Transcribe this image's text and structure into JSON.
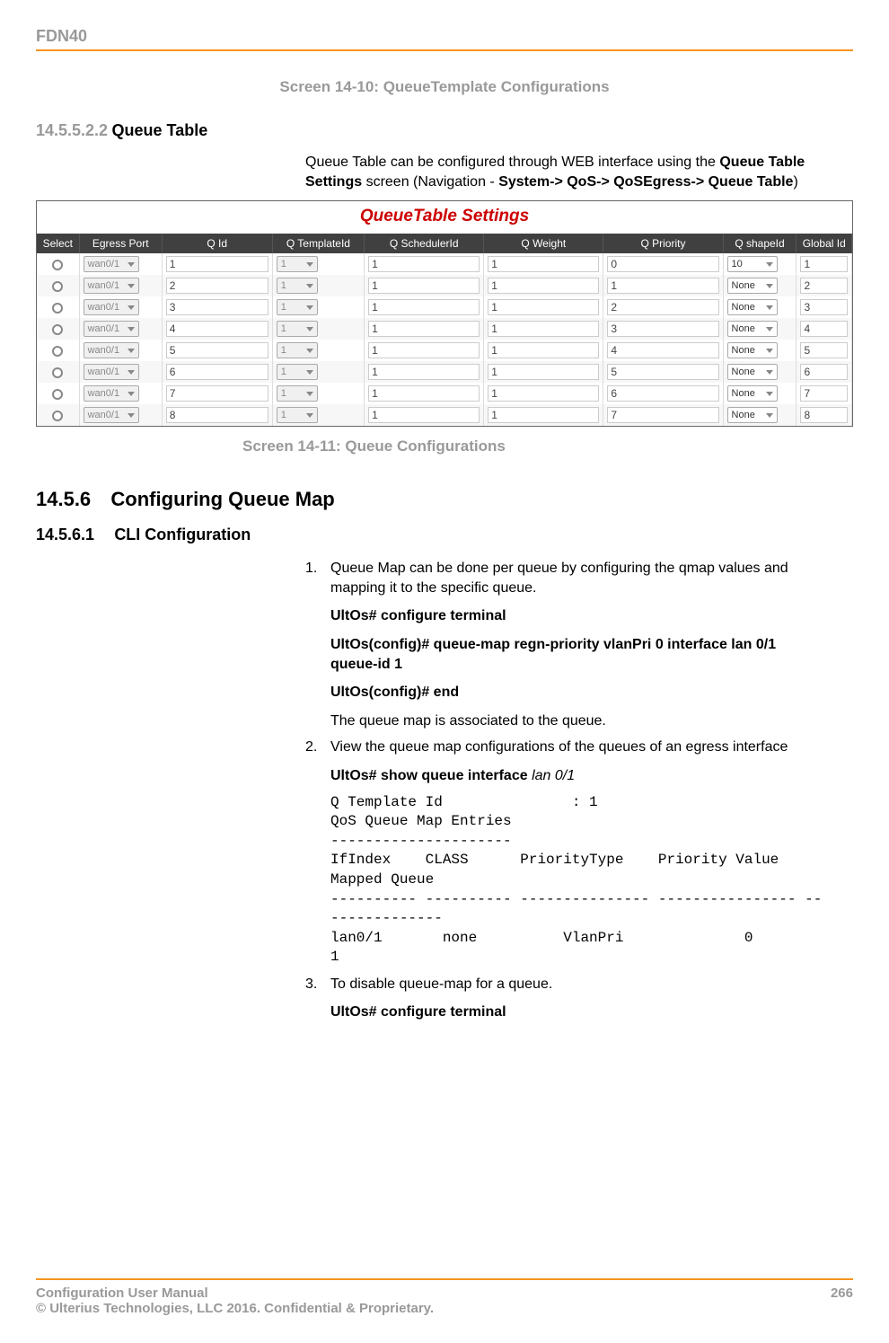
{
  "header": {
    "code": "FDN40"
  },
  "captions": {
    "c1": "Screen 14-10: QueueTemplate Configurations",
    "c2": "Screen 14-11: Queue Configurations"
  },
  "section1": {
    "num": "14.5.5.2.2",
    "title": "Queue Table",
    "para_pre": "Queue Table can be configured through WEB interface using the ",
    "para_bold1": "Queue Table Settings",
    "para_mid": " screen (Navigation - ",
    "para_bold2": "System-> QoS-> QoSEgress-> Queue Table",
    "para_post": ")"
  },
  "ui": {
    "title": "QueueTable Settings",
    "columns": [
      "Select",
      "Egress Port",
      "Q Id",
      "Q TemplateId",
      "Q SchedulerId",
      "Q Weight",
      "Q Priority",
      "Q shapeId",
      "Global Id"
    ],
    "rows": [
      {
        "port": "wan0/1",
        "qid": "1",
        "tmpl": "1",
        "sched": "1",
        "weight": "1",
        "prio": "0",
        "shape": "10",
        "gid": "1"
      },
      {
        "port": "wan0/1",
        "qid": "2",
        "tmpl": "1",
        "sched": "1",
        "weight": "1",
        "prio": "1",
        "shape": "None",
        "gid": "2"
      },
      {
        "port": "wan0/1",
        "qid": "3",
        "tmpl": "1",
        "sched": "1",
        "weight": "1",
        "prio": "2",
        "shape": "None",
        "gid": "3"
      },
      {
        "port": "wan0/1",
        "qid": "4",
        "tmpl": "1",
        "sched": "1",
        "weight": "1",
        "prio": "3",
        "shape": "None",
        "gid": "4"
      },
      {
        "port": "wan0/1",
        "qid": "5",
        "tmpl": "1",
        "sched": "1",
        "weight": "1",
        "prio": "4",
        "shape": "None",
        "gid": "5"
      },
      {
        "port": "wan0/1",
        "qid": "6",
        "tmpl": "1",
        "sched": "1",
        "weight": "1",
        "prio": "5",
        "shape": "None",
        "gid": "6"
      },
      {
        "port": "wan0/1",
        "qid": "7",
        "tmpl": "1",
        "sched": "1",
        "weight": "1",
        "prio": "6",
        "shape": "None",
        "gid": "7"
      },
      {
        "port": "wan0/1",
        "qid": "8",
        "tmpl": "1",
        "sched": "1",
        "weight": "1",
        "prio": "7",
        "shape": "None",
        "gid": "8"
      }
    ]
  },
  "h2": {
    "num": "14.5.6",
    "title": "Configuring Queue Map"
  },
  "h3": {
    "num": "14.5.6.1",
    "title": "CLI Configuration"
  },
  "proc": {
    "n1": "1.",
    "t1": "Queue Map can be done per queue by configuring the qmap values and mapping it to the specific queue.",
    "cmd1a": "UltOs# configure terminal",
    "cmd1b": "UltOs(config)# queue-map regn-priority vlanPri 0 interface lan 0/1 queue-id 1",
    "cmd1c": "UltOs(config)# end",
    "t1b": "The queue map is associated to the queue.",
    "n2": "2.",
    "t2": "View the queue map configurations of the queues of an egress interface",
    "cmd2a_pre": "UltOs# show queue interface ",
    "cmd2a_it": "lan 0/1",
    "mono": "Q Template Id               : 1\nQoS Queue Map Entries\n---------------------\nIfIndex    CLASS      PriorityType    Priority Value   Mapped Queue\n---------- ---------- --------------- ---------------- ---------------\nlan0/1       none          VlanPri              0            1",
    "n3": "3.",
    "t3": "To disable queue-map for a queue.",
    "cmd3a": "UltOs# configure terminal"
  },
  "footer": {
    "left1": "Configuration User Manual",
    "left2": "© Ulterius Technologies, LLC 2016. Confidential & Proprietary.",
    "page": "266"
  }
}
